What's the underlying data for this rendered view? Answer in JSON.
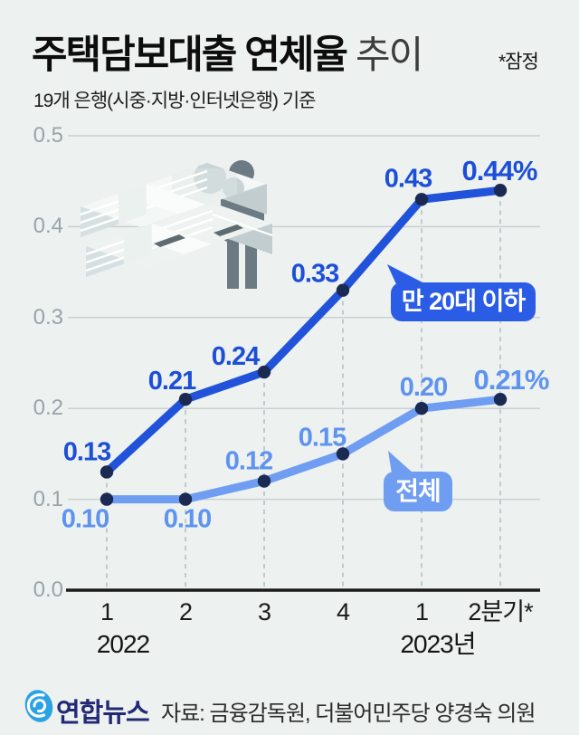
{
  "header": {
    "title_bold": "주택담보대출 연체율",
    "title_light": "추이",
    "note": "*잠정",
    "subtitle": "19개 은행(시중·지방·인터넷은행) 기준"
  },
  "chart_data": {
    "type": "line",
    "title": "주택담보대출 연체율 추이",
    "unit": "%",
    "ylim": [
      0.0,
      0.5
    ],
    "grid": true,
    "y_ticks": [
      "0.5",
      "0.4",
      "0.3",
      "0.2",
      "0.1",
      "0.0"
    ],
    "x_tick_labels": [
      "1",
      "2",
      "3",
      "4",
      "1",
      "2분기*"
    ],
    "year_labels": [
      "2022",
      "2023년"
    ],
    "series": [
      {
        "name": "만 20대 이하",
        "values": [
          0.13,
          0.21,
          0.24,
          0.33,
          0.43,
          0.44
        ],
        "labels": [
          "0.13",
          "0.21",
          "0.24",
          "0.33",
          "0.43",
          "0.44%"
        ],
        "color": "#2152da",
        "label_color": "#1c4fd8",
        "bubble_color": "#2b5ce6"
      },
      {
        "name": "전체",
        "values": [
          0.1,
          0.1,
          0.12,
          0.15,
          0.2,
          0.21
        ],
        "labels": [
          "0.10",
          "0.10",
          "0.12",
          "0.15",
          "0.20",
          "0.21%"
        ],
        "color": "#6f9df2",
        "label_color": "#5e93f0",
        "bubble_color": "#6f9df2"
      }
    ]
  },
  "footer": {
    "brand": "연합뉴스",
    "source": "자료: 금융감독원, 더불어민주당 양경숙 의원"
  },
  "colors": {
    "background": "#edf1ef",
    "grid": "#c8d1d3",
    "dash": "#b3c3c9",
    "baseline": "#1a1a1a",
    "axis_text": "#98a4aa",
    "point": "#1b2a52",
    "brand_blue": "#2aa2e4",
    "brand_text": "#232a75",
    "illustration_gray": "#6b7a83"
  }
}
